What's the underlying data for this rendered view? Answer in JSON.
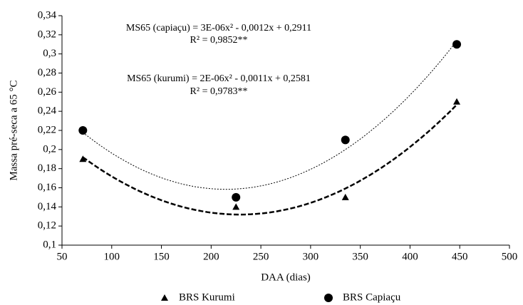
{
  "chart_data": {
    "type": "scatter",
    "xlabel": "DAA (dias)",
    "ylabel": "Massa pré-seca a 65 °C",
    "x": [
      71,
      225,
      335,
      447
    ],
    "series": [
      {
        "name": "BRS Kurumi",
        "color": "#000000",
        "marker": "triangle",
        "values": [
          0.19,
          0.14,
          0.15,
          0.25
        ]
      },
      {
        "name": "BRS Capiaçu",
        "color": "#000000",
        "marker": "circle",
        "values": [
          0.22,
          0.15,
          0.21,
          0.31
        ]
      }
    ],
    "annotations": [
      "MS65 (capiaçu) = 3E-06x² - 0,0012x + 0,2911",
      "R² = 0,9852**",
      "MS65 (kurumi) = 2E-06x² - 0,0011x + 0,2581",
      "R² = 0,9783**"
    ],
    "trendline": "polynomial",
    "xlim": [
      50,
      500
    ],
    "xticks": [
      50,
      100,
      150,
      200,
      250,
      300,
      350,
      400,
      450,
      500
    ],
    "ylim": [
      0.1,
      0.34
    ],
    "yticks": [
      {
        "value": 0.1,
        "label": "0,1"
      },
      {
        "value": 0.12,
        "label": "0,12"
      },
      {
        "value": 0.14,
        "label": "0,14"
      },
      {
        "value": 0.16,
        "label": "0,16"
      },
      {
        "value": 0.18,
        "label": "0,18"
      },
      {
        "value": 0.2,
        "label": "0,2"
      },
      {
        "value": 0.22,
        "label": "0,22"
      },
      {
        "value": 0.24,
        "label": "0,24"
      },
      {
        "value": 0.26,
        "label": "0,26"
      },
      {
        "value": 0.28,
        "label": "0,28"
      },
      {
        "value": 0.3,
        "label": "0,3"
      },
      {
        "value": 0.32,
        "label": "0,32"
      },
      {
        "value": 0.34,
        "label": "0,34"
      }
    ],
    "grid": false,
    "legend": "bottom"
  }
}
